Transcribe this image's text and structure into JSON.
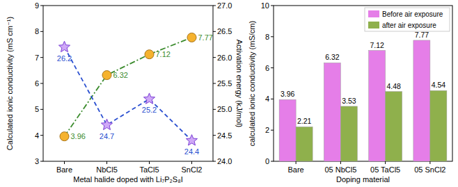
{
  "chart_data": [
    {
      "type": "line",
      "x_label": "Metal halide doped with Li₇P₂S₈I",
      "y_label": "Calculated ionic conductivity (mS cm⁻¹)",
      "y2_label": "Activation energy (kJ/mol)",
      "categories": [
        "Bare",
        "NbCl5",
        "TaCl5",
        "SnCl2"
      ],
      "ylim": [
        3,
        9
      ],
      "yticks": [
        3,
        4,
        5,
        6,
        7,
        8,
        9
      ],
      "y2lim": [
        24,
        27
      ],
      "y2ticks": [
        {
          "value": 24,
          "label": "24.0"
        },
        24.5,
        {
          "value": 25,
          "label": "25.0"
        },
        25.5,
        {
          "value": 26,
          "label": "26.0"
        },
        26.5,
        {
          "value": 27,
          "label": "27.0"
        }
      ],
      "data_labels": true,
      "series": [
        {
          "color": "#3c8c2e",
          "marker": "circle",
          "line_style": "dashdot",
          "values": [
            3.96,
            6.32,
            7.12,
            7.77
          ]
        },
        {
          "color": "#2a4fd0",
          "marker": "star",
          "line_style": "dashed",
          "axis": "y2",
          "values": [
            26.2,
            24.7,
            25.2,
            24.4
          ]
        }
      ]
    },
    {
      "type": "bar",
      "x_label": "Doping material",
      "y_label": "calculated ionic conductivity (mS/cm)",
      "categories": [
        "Bare",
        "05 NbCl5",
        "05 TaCl5",
        "05 SnCl2"
      ],
      "ylim": [
        0,
        10
      ],
      "yticks": [
        0,
        2,
        4,
        6,
        8,
        10
      ],
      "legend": "upper right",
      "data_labels": true,
      "series": [
        {
          "name": "Before air exposure",
          "color": "#e57ee8",
          "values": [
            3.96,
            6.32,
            7.12,
            7.77
          ]
        },
        {
          "name": "after air exposure",
          "color": "#8fb04c",
          "values": [
            2.21,
            3.53,
            4.48,
            4.54
          ]
        }
      ]
    }
  ]
}
